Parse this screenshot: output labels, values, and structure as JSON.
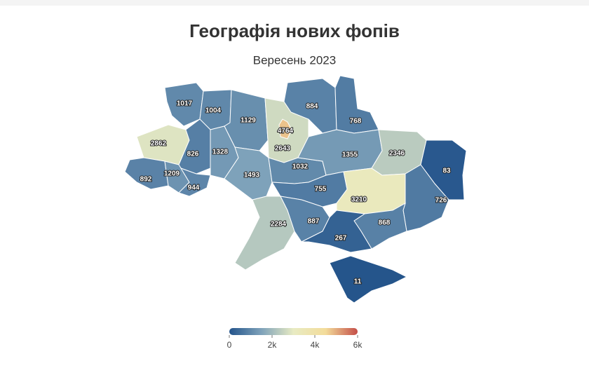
{
  "chart_data": {
    "type": "choropleth",
    "title": "Географія нових фопів",
    "subtitle": "Вересень 2023",
    "values": [
      1017,
      1004,
      1129,
      2643,
      4764,
      884,
      768,
      2862,
      826,
      1328,
      1493,
      1032,
      1355,
      2346,
      83,
      892,
      1209,
      944,
      755,
      3210,
      726,
      2284,
      887,
      868,
      267,
      11
    ],
    "colorscale": [
      "#24548b",
      "#7ea2ba",
      "#e8ebc3",
      "#f3dc9a",
      "#c44e48"
    ],
    "colorbar_range": [
      0,
      6000
    ],
    "colorbar_ticks": [
      0,
      {
        "value": 2000,
        "label": "2k"
      },
      {
        "value": 4000,
        "label": "4k"
      },
      {
        "value": 6000,
        "label": "6k"
      }
    ]
  }
}
